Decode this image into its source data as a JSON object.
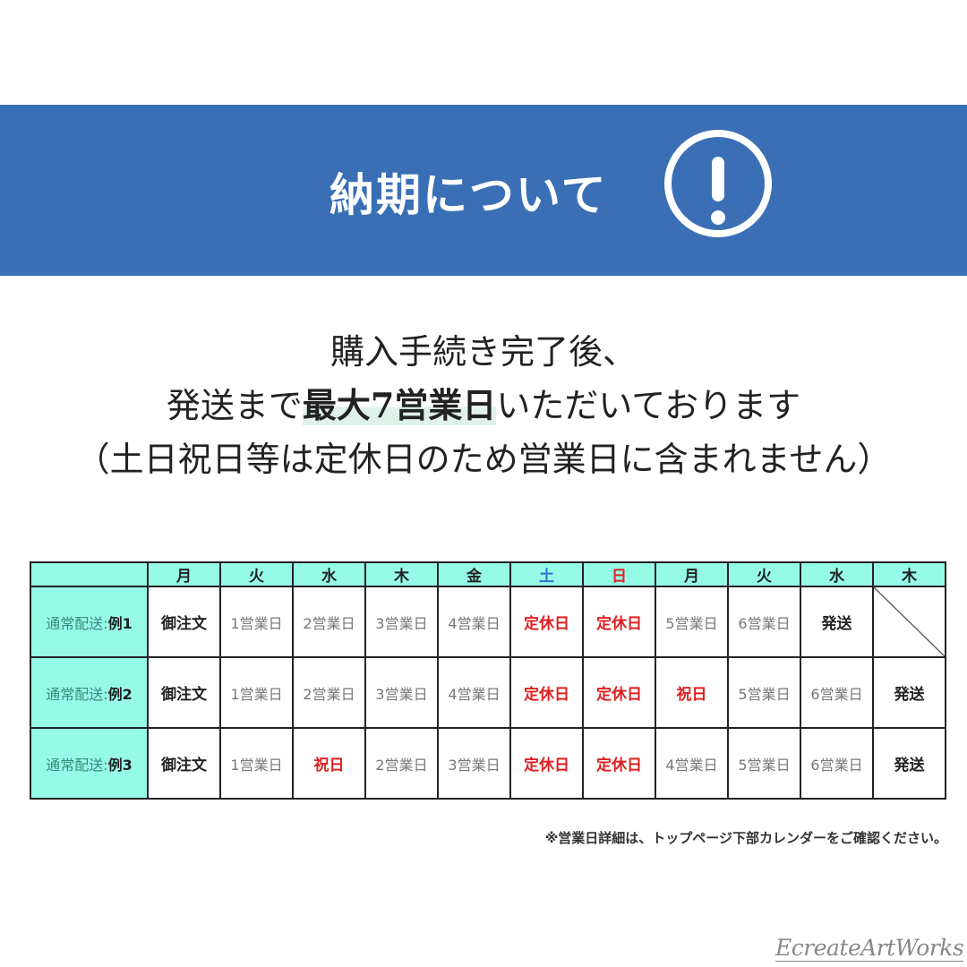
{
  "banner": {
    "title": "納期について",
    "icon": "exclamation-circle-icon"
  },
  "intro": {
    "line1": "購入手続き完了後、",
    "line2_pre": "発送まで",
    "line2_bold": "最大7営業日",
    "line2_post": "いただいております",
    "line3": "（土日祝日等は定休日のため営業日に含まれません）"
  },
  "table": {
    "headers": [
      "月",
      "火",
      "水",
      "木",
      "金",
      "土",
      "日",
      "月",
      "火",
      "水",
      "木"
    ],
    "rows": [
      {
        "label_pre": "通常配送:",
        "label_bold": "例1",
        "cells": [
          "御注文",
          "1営業日",
          "2営業日",
          "3営業日",
          "4営業日",
          "定休日",
          "定休日",
          "5営業日",
          "6営業日",
          "発送",
          ""
        ]
      },
      {
        "label_pre": "通常配送:",
        "label_bold": "例2",
        "cells": [
          "御注文",
          "1営業日",
          "2営業日",
          "3営業日",
          "4営業日",
          "定休日",
          "定休日",
          "祝日",
          "5営業日",
          "6営業日",
          "発送"
        ]
      },
      {
        "label_pre": "通常配送:",
        "label_bold": "例3",
        "cells": [
          "御注文",
          "1営業日",
          "祝日",
          "2営業日",
          "3営業日",
          "定休日",
          "定休日",
          "4営業日",
          "5営業日",
          "6営業日",
          "発送"
        ]
      }
    ]
  },
  "note": "※営業日詳細は、トップページ下部カレンダーをご確認ください。",
  "logo": "EcreateArtWorks",
  "colors": {
    "banner": "#3a6fb5",
    "header_bg": "#95fbe6",
    "holiday": "#e02020",
    "saturday": "#3a6fd0"
  }
}
